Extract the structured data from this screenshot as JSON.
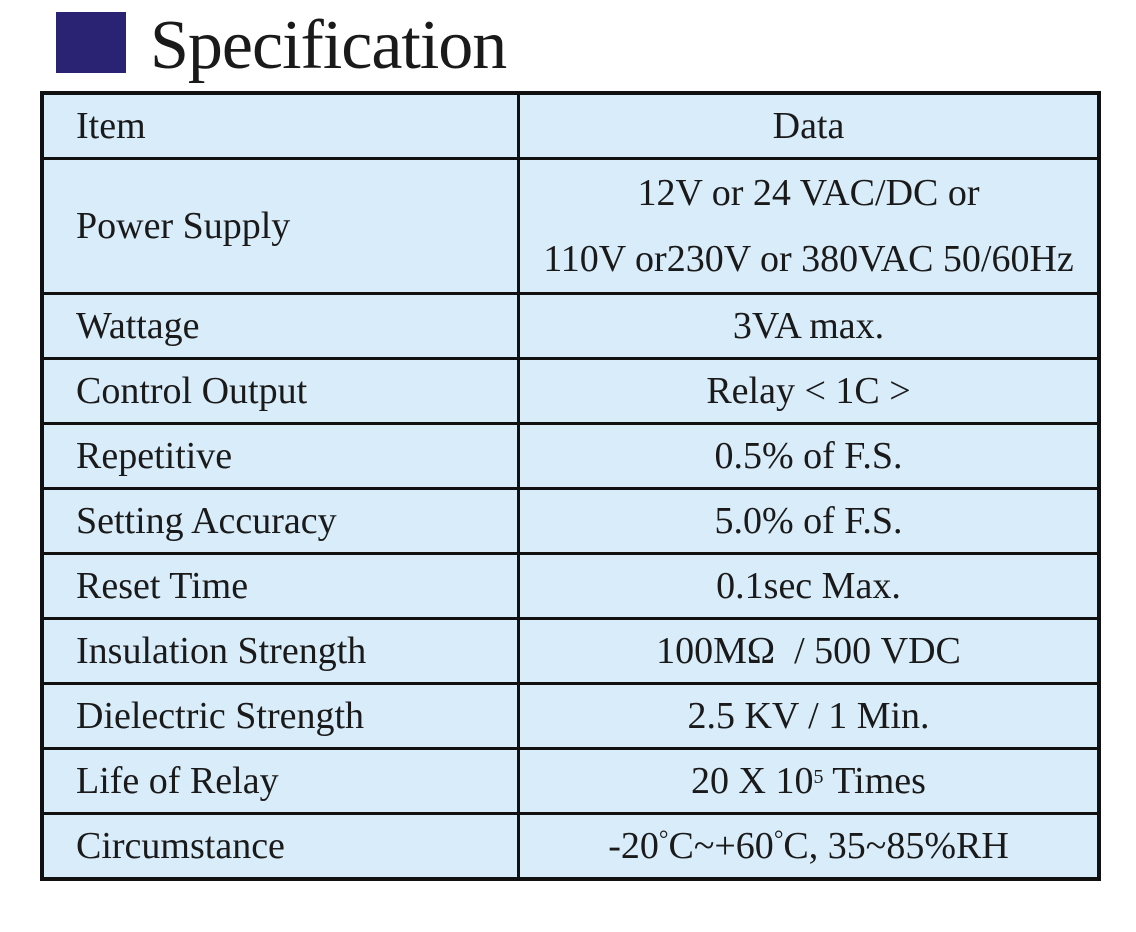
{
  "title": "Specification",
  "table": {
    "header": {
      "item": "Item",
      "data": "Data"
    },
    "rows": [
      {
        "item": "Power Supply",
        "data_line1": "12V or 24 VAC/DC or",
        "data_line2": "110V or230V or 380VAC 50/60Hz"
      },
      {
        "item": "Wattage",
        "data": "3VA max."
      },
      {
        "item": "Control Output",
        "data": "Relay < 1C >"
      },
      {
        "item": "Repetitive",
        "data": "0.5% of F.S."
      },
      {
        "item": "Setting Accuracy",
        "data": "5.0% of F.S."
      },
      {
        "item": "Reset Time",
        "data": "0.1sec Max."
      },
      {
        "item": "Insulation Strength",
        "data": "100MΩ  / 500 VDC"
      },
      {
        "item": "Dielectric Strength",
        "data": "2.5 KV / 1 Min."
      },
      {
        "item": "Life of Relay",
        "data_prefix": "20 X 10",
        "data_sup": "5",
        "data_suffix": " Times"
      },
      {
        "item": "Circumstance",
        "data_a": "-20",
        "data_deg1": "°",
        "data_b": "C~+60",
        "data_deg2": "°",
        "data_c": "C, 35~85%RH"
      }
    ]
  },
  "colors": {
    "title_square": "#2a2373",
    "cell_background": "#d9ecf9",
    "border": "#111111"
  }
}
